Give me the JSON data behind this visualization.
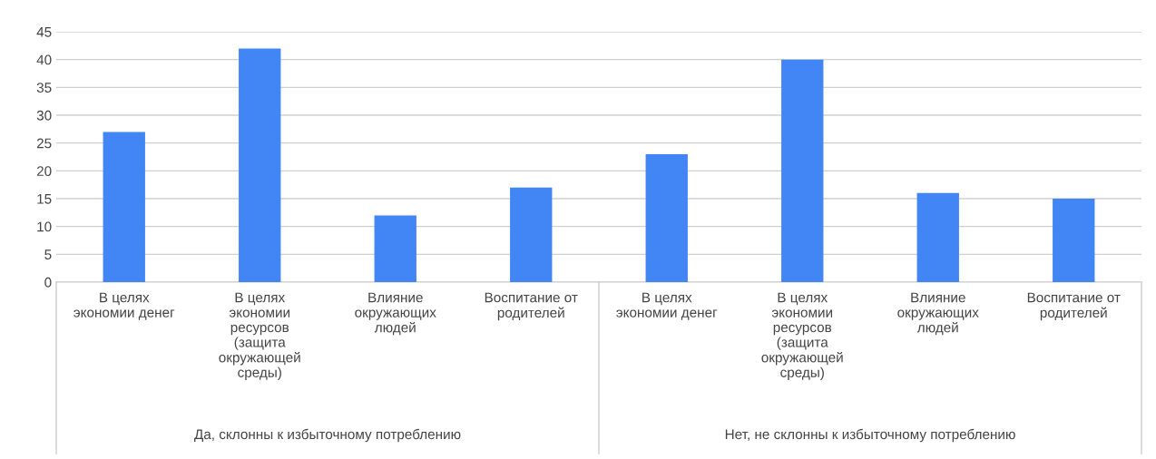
{
  "chart_data": {
    "type": "bar",
    "categories": [
      "В целях\nэкономии денег",
      "В целях\nэкономии\nресурсов\n(защита\nокружающей\nсреды)",
      "Влияние\nокружающих\nлюдей",
      "Воспитание от\nродителей",
      "В целях\nэкономии денег",
      "В целях\nэкономии\nресурсов\n(защита\nокружающей\nсреды)",
      "Влияние\nокружающих\nлюдей",
      "Воспитание от\nродителей"
    ],
    "values": [
      27,
      42,
      12,
      17,
      23,
      40,
      16,
      15
    ],
    "color": "#4285f4",
    "ylim": [
      0,
      45
    ],
    "yticks": [
      0,
      5,
      10,
      15,
      20,
      25,
      30,
      35,
      40,
      45
    ],
    "grid": "y",
    "annotations": [
      "Да, склонны к избыточному потреблению",
      "Нет, не склонны к избыточному потреблению"
    ]
  }
}
